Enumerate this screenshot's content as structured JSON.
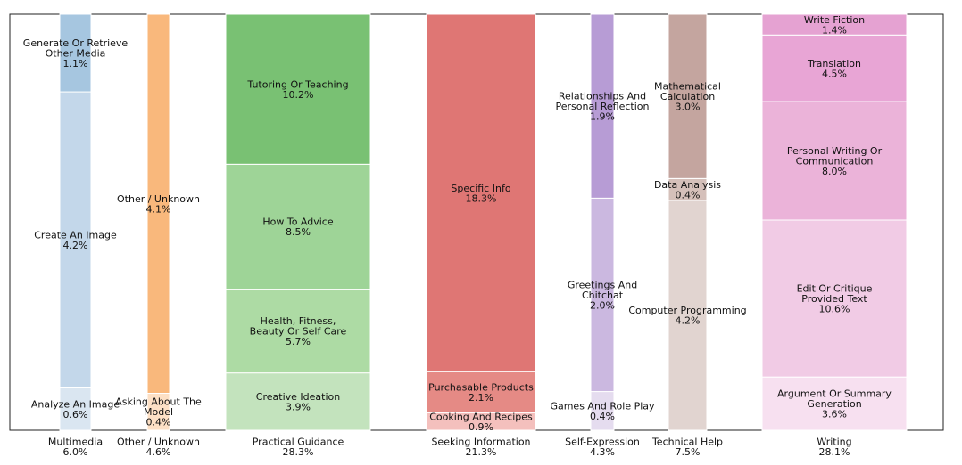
{
  "chart_data": {
    "type": "marimekko",
    "title": "",
    "xlabel": "",
    "ylabel": "",
    "ylim": [
      0,
      100
    ],
    "categories": [
      {
        "name": "Multimedia",
        "total": "6.0%",
        "share": 6.0,
        "segments": [
          {
            "label": "Analyze An Image",
            "value": 0.6,
            "value_label": "0.6%",
            "color": "#dae6f1"
          },
          {
            "label": "Create An Image",
            "value": 4.2,
            "value_label": "4.2%",
            "color": "#c3d7ea"
          },
          {
            "label": "Generate Or Retrieve Other Media",
            "value": 1.1,
            "value_label": "1.1%",
            "color": "#a6c6e0"
          }
        ]
      },
      {
        "name": "Other / Unknown",
        "total": "4.6%",
        "share": 4.6,
        "segments": [
          {
            "label": "Asking About The Model",
            "value": 0.4,
            "value_label": "0.4%",
            "color": "#fde0c5"
          },
          {
            "label": "Other / Unknown",
            "value": 4.1,
            "value_label": "4.1%",
            "color": "#f9b87c"
          }
        ]
      },
      {
        "name": "Practical Guidance",
        "total": "28.3%",
        "share": 28.3,
        "segments": [
          {
            "label": "Creative Ideation",
            "value": 3.9,
            "value_label": "3.9%",
            "color": "#c3e3bd"
          },
          {
            "label": "Health, Fitness, Beauty Or Self Care",
            "value": 5.7,
            "value_label": "5.7%",
            "color": "#addba4"
          },
          {
            "label": "How To Advice",
            "value": 8.5,
            "value_label": "8.5%",
            "color": "#9ed497"
          },
          {
            "label": "Tutoring Or Teaching",
            "value": 10.2,
            "value_label": "10.2%",
            "color": "#79c173"
          }
        ]
      },
      {
        "name": "Seeking Information",
        "total": "21.3%",
        "share": 21.3,
        "segments": [
          {
            "label": "Cooking And Recipes",
            "value": 0.9,
            "value_label": "0.9%",
            "color": "#f4c0bd"
          },
          {
            "label": "Purchasable Products",
            "value": 2.1,
            "value_label": "2.1%",
            "color": "#e58a85"
          },
          {
            "label": "Specific Info",
            "value": 18.3,
            "value_label": "18.3%",
            "color": "#df7674"
          }
        ]
      },
      {
        "name": "Self-Expression",
        "total": "4.3%",
        "share": 4.3,
        "segments": [
          {
            "label": "Games And Role Play",
            "value": 0.4,
            "value_label": "0.4%",
            "color": "#e5dcef"
          },
          {
            "label": "Greetings And Chitchat",
            "value": 2.0,
            "value_label": "2.0%",
            "color": "#cbb8e0"
          },
          {
            "label": "Relationships And Personal Reflection",
            "value": 1.9,
            "value_label": "1.9%",
            "color": "#b79cd5"
          }
        ]
      },
      {
        "name": "Technical Help",
        "total": "7.5%",
        "share": 7.5,
        "segments": [
          {
            "label": "Computer Programming",
            "value": 4.2,
            "value_label": "4.2%",
            "color": "#e1d4d0"
          },
          {
            "label": "Data Analysis",
            "value": 0.4,
            "value_label": "0.4%",
            "color": "#d5c0ba"
          },
          {
            "label": "Mathematical Calculation",
            "value": 3.0,
            "value_label": "3.0%",
            "color": "#c4a59f"
          }
        ]
      },
      {
        "name": "Writing",
        "total": "28.1%",
        "share": 28.1,
        "segments": [
          {
            "label": "Argument Or Summary Generation",
            "value": 3.6,
            "value_label": "3.6%",
            "color": "#f7e0f0"
          },
          {
            "label": "Edit Or Critique Provided Text",
            "value": 10.6,
            "value_label": "10.6%",
            "color": "#f1cbe5"
          },
          {
            "label": "Personal Writing Or Communication",
            "value": 8.0,
            "value_label": "8.0%",
            "color": "#ebb3d9"
          },
          {
            "label": "Translation",
            "value": 4.5,
            "value_label": "4.5%",
            "color": "#e8a5d5"
          },
          {
            "label": "Write Fiction",
            "value": 1.4,
            "value_label": "1.4%",
            "color": "#e5a2d2"
          }
        ]
      }
    ]
  }
}
